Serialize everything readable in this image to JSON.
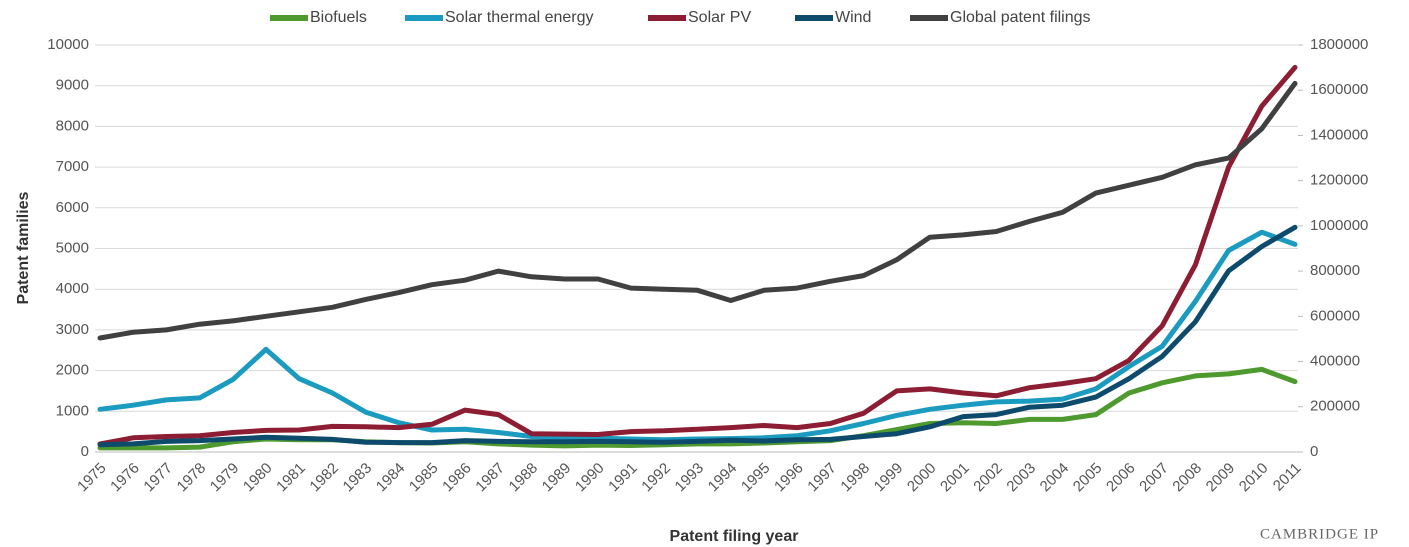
{
  "chart_data": {
    "type": "line",
    "ylabel": "Patent families",
    "xlabel": "Patent filing year",
    "logo": "CAMBRIDGE IP",
    "categories": [
      "1975",
      "1976",
      "1977",
      "1978",
      "1979",
      "1980",
      "1981",
      "1982",
      "1983",
      "1984",
      "1985",
      "1986",
      "1987",
      "1988",
      "1989",
      "1990",
      "1991",
      "1992",
      "1993",
      "1994",
      "1995",
      "1996",
      "1997",
      "1998",
      "1999",
      "2000",
      "2001",
      "2002",
      "2003",
      "2004",
      "2005",
      "2006",
      "2007",
      "2008",
      "2009",
      "2010",
      "2011"
    ],
    "series": [
      {
        "name": "Biofuels",
        "color": "#4e9a2f",
        "values": [
          100,
          100,
          100,
          120,
          250,
          320,
          300,
          300,
          250,
          230,
          220,
          250,
          200,
          170,
          150,
          170,
          160,
          180,
          200,
          200,
          220,
          250,
          280,
          400,
          550,
          700,
          720,
          700,
          800,
          800,
          920,
          1450,
          1700,
          1870,
          1920,
          2030,
          1730
        ]
      },
      {
        "name": "Solar thermal energy",
        "color": "#1a9bbf",
        "values": [
          1050,
          1150,
          1280,
          1330,
          1780,
          2520,
          1800,
          1450,
          980,
          720,
          540,
          560,
          480,
          380,
          350,
          340,
          320,
          300,
          320,
          330,
          350,
          400,
          520,
          700,
          900,
          1050,
          1150,
          1230,
          1250,
          1300,
          1550,
          2100,
          2600,
          3700,
          4950,
          5400,
          5100
        ]
      },
      {
        "name": "Solar PV",
        "color": "#8c1d32",
        "values": [
          200,
          350,
          380,
          400,
          480,
          530,
          540,
          630,
          620,
          600,
          680,
          1030,
          920,
          450,
          440,
          430,
          500,
          520,
          560,
          600,
          650,
          600,
          700,
          950,
          1500,
          1550,
          1450,
          1380,
          1580,
          1680,
          1800,
          2250,
          3100,
          4600,
          7000,
          8500,
          9450
        ]
      },
      {
        "name": "Wind",
        "color": "#0d4a6b",
        "values": [
          180,
          200,
          260,
          280,
          320,
          360,
          340,
          310,
          240,
          230,
          230,
          280,
          260,
          250,
          250,
          260,
          250,
          240,
          260,
          290,
          270,
          300,
          310,
          380,
          450,
          620,
          870,
          920,
          1100,
          1150,
          1350,
          1800,
          2350,
          3200,
          4450,
          5050,
          5520
        ]
      },
      {
        "name": "Global patent filings",
        "color": "#404040",
        "axis": "y2",
        "values": [
          504000,
          530000,
          540000,
          565000,
          580000,
          600000,
          620000,
          640000,
          675000,
          705000,
          740000,
          760000,
          800000,
          775000,
          765000,
          765000,
          725000,
          720000,
          715000,
          670000,
          715000,
          725000,
          755000,
          780000,
          850000,
          950000,
          960000,
          975000,
          1020000,
          1060000,
          1145000,
          1180000,
          1215000,
          1270000,
          1300000,
          1430000,
          1630000
        ]
      }
    ],
    "ylim": [
      0,
      10000
    ],
    "yticks": [
      0,
      1000,
      2000,
      3000,
      4000,
      5000,
      6000,
      7000,
      8000,
      9000,
      10000
    ],
    "y2lim": [
      0,
      1800000
    ],
    "y2ticks": [
      0,
      200000,
      400000,
      600000,
      800000,
      1000000,
      1200000,
      1400000,
      1600000,
      1800000
    ],
    "grid": true,
    "legend": "top"
  }
}
